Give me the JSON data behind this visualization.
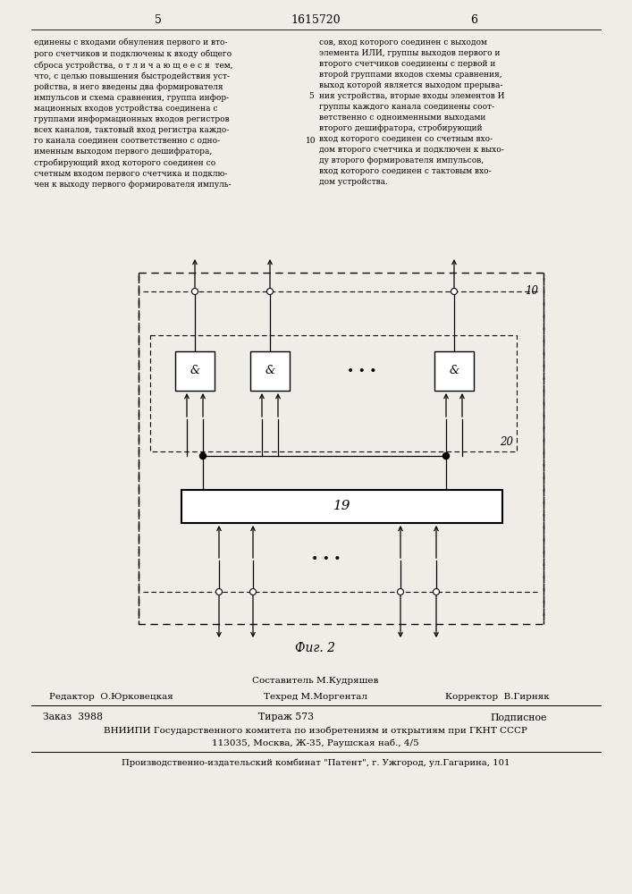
{
  "page_width": 7.07,
  "page_height": 10.0,
  "bg_color": "#f0ede8",
  "header_page_left": "5",
  "header_title": "1615720",
  "header_page_right": "6",
  "text_left": "единены с входами обнуления первого и вто-\nрого счетчиков и подключены к входу общего\nсброса устройства, о т л и ч а ю щ е е с я  тем,\nчто, с целью повышения быстродействия уст-\nройства, в него введены два формирователя\nимпульсов и схема сравнения, группа инфор-\nмационных входов устройства соединена с\nгруппами информационных входов регистров\nвсех каналов, тактовый вход регистра каждо-\nго канала соединен соответственно с одно-\nименным выходом первого дешифратора,\nстробирующий вход которого соединен со\nсчетным входом первого счетчика и подклю-\nчен к выходу первого формирователя импуль-",
  "text_right": "сов, вход которого соединен с выходом\nэлемента ИЛИ, группы выходов первого и\nвторого счетчиков соединены с первой и\nвторой группами входов схемы сравнения,\nвыход которой является выходом прерыва-\nния устройства, вторые входы элементов И\nгруппы каждого канала соединены соот-\nветственно с одноименными выходами\nвторого дешифратора, стробирующий\nвход которого соединен со счетным вхо-\nдом второго счетчика и подключен к выхо-\nду второго формирователя импульсов,\nвход которого соединен с тактовым вхо-\nдом устройства.",
  "fig_label": "Фиг. 2",
  "label_10": "10",
  "label_19": "19",
  "label_20": "20",
  "footer_composer": "Составитель М.Кудряшев",
  "footer_editor": "Редактор  О.Юрковецкая",
  "footer_tech": "Техред М.Моргентал",
  "footer_corrector": "Корректор  В.Гирняк",
  "footer_order": "Заказ  3988",
  "footer_tirazh": "Тираж 573",
  "footer_podpisnoe": "Подписное",
  "footer_vniiipi": "ВНИИПИ Государственного комитета по изобретениям и открытиям при ГКНТ СССР",
  "footer_address": "113035, Москва, Ж-35, Раушская наб., 4/5",
  "footer_publisher": "Производственно-издательский комбинат \"Патент\", г. Ужгород, ул.Гагарина, 101"
}
